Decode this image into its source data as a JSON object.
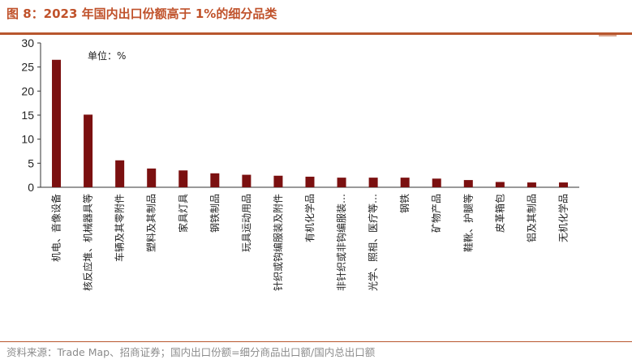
{
  "title": "图 8：2023 年国内出口份额高于 1%的细分品类",
  "source": "资料来源：Trade Map、招商证券；国内出口份额=细分商品出口额/国内总出口额",
  "colors": {
    "bar": "#7b1010",
    "accent": "#c0522b"
  },
  "chart_data": {
    "type": "bar",
    "unit_label": "单位：%",
    "ylim": [
      0,
      30
    ],
    "yticks": [
      0,
      5,
      10,
      15,
      20,
      25,
      30
    ],
    "categories": [
      "机电、音像设备",
      "核反应堆、机械器具等",
      "车辆及其零附件",
      "塑料及其制品",
      "家具灯具",
      "钢铁制品",
      "玩具运动用品",
      "针织或钩编服装及附件",
      "有机化学品",
      "非针织或非钩编服装…",
      "光学、照相、医疗等…",
      "钢铁",
      "矿物产品",
      "鞋靴、护腿等",
      "皮革箱包",
      "铝及其制品",
      "无机化学品"
    ],
    "values": [
      26.5,
      15.1,
      5.6,
      3.9,
      3.5,
      2.9,
      2.6,
      2.4,
      2.2,
      2.0,
      2.0,
      2.0,
      1.8,
      1.5,
      1.1,
      1.0,
      1.0
    ],
    "grid": false,
    "legend": "none"
  }
}
